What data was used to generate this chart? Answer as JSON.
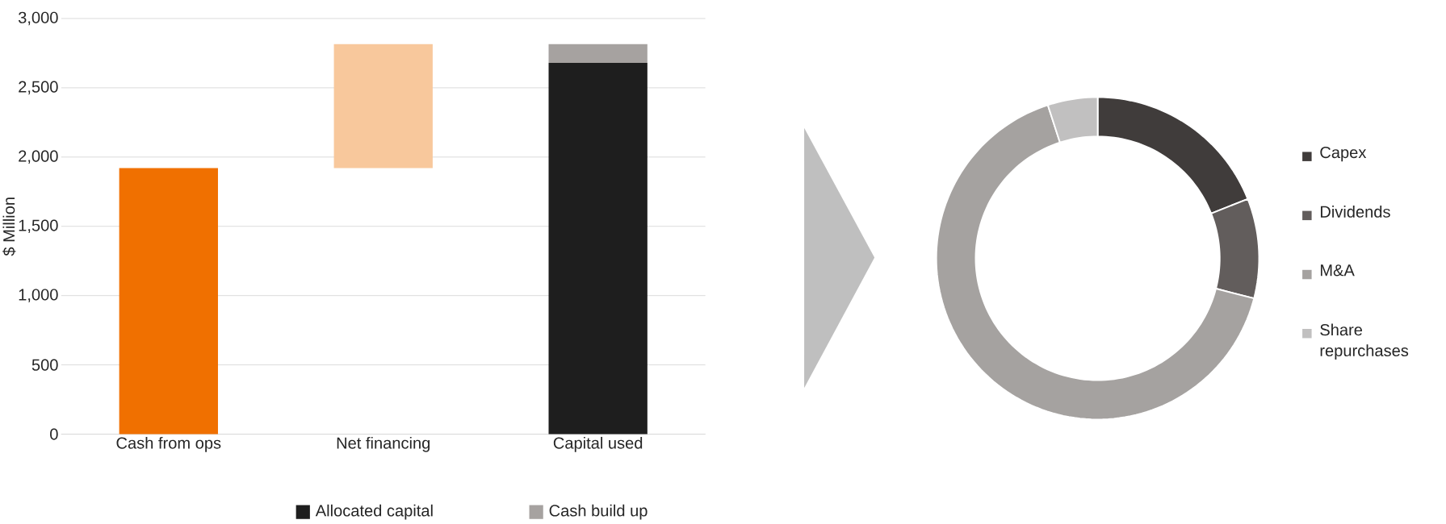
{
  "chart_data": [
    {
      "type": "bar",
      "ylabel": "$ Million",
      "categories": [
        "Cash from ops",
        "Net financing",
        "Capital used"
      ],
      "stacked": true,
      "grid": "y",
      "legend": "bottom",
      "ylim": [
        0,
        3000
      ],
      "yticks": [
        {
          "value": 0,
          "label": "0"
        },
        {
          "value": 500,
          "label": "500"
        },
        {
          "value": 1000,
          "label": "1,000"
        },
        {
          "value": 1500,
          "label": "1,500"
        },
        {
          "value": 2000,
          "label": "2,000"
        },
        {
          "value": 2500,
          "label": "2,500"
        },
        {
          "value": 3000,
          "label": "3,000"
        }
      ],
      "series": [
        {
          "colors": [
            "#f07000",
            "#f8c89c",
            null
          ],
          "values": [
            1920,
            895,
            null
          ],
          "base": [
            0,
            1920,
            null
          ]
        },
        {
          "name": "Allocated capital",
          "color": "#1e1e1e",
          "values": [
            null,
            null,
            2680
          ]
        },
        {
          "name": "Cash build up",
          "color": "#a6a2a0",
          "values": [
            null,
            null,
            135
          ]
        }
      ]
    },
    {
      "type": "donut",
      "categories": [
        "Capex",
        "Dividends",
        "M&A",
        "Share repurchases"
      ],
      "values": [
        19,
        10,
        66,
        5
      ],
      "colors": [
        "#403c3b",
        "#625d5c",
        "#a5a2a0",
        "#c1c0c0"
      ],
      "legend": "right"
    }
  ]
}
